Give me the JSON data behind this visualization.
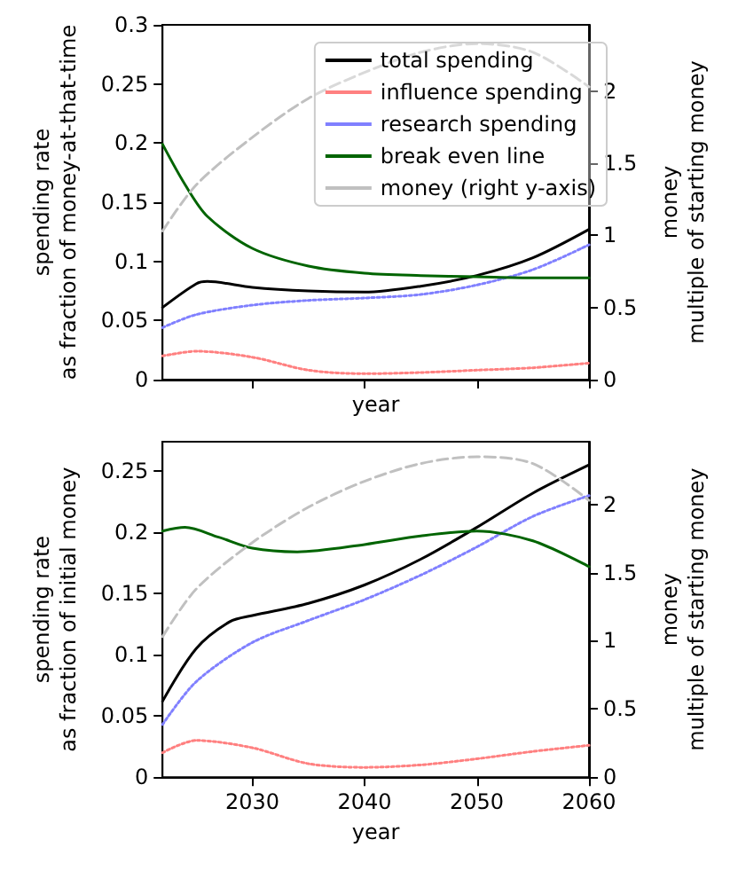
{
  "chart_data": [
    {
      "type": "line",
      "xlabel": "year",
      "ylabel": "spending rate\nas fraction of money-at-that-time",
      "y2label": "money\nmultiple of starting money",
      "xlim": [
        2022,
        2060
      ],
      "xticks": [
        {
          "value": 2030,
          "label": null
        },
        {
          "value": 2040,
          "label": null
        },
        {
          "value": 2050,
          "label": null
        },
        {
          "value": 2060,
          "label": null
        }
      ],
      "ylim": [
        0,
        0.3
      ],
      "yticks": [
        0,
        0.05,
        0.1,
        0.15,
        0.2,
        0.25,
        0.3
      ],
      "y2lim": [
        0,
        2.46
      ],
      "y2ticks": [
        0,
        0.5,
        1.0,
        1.5,
        2.0
      ],
      "tick_labels": "y",
      "grid": false,
      "legend": "top right",
      "marker": "none",
      "series": [
        {
          "name": "total spending",
          "color": "#000000",
          "line_style": "solid",
          "x": [
            2022,
            2025,
            2026,
            2030,
            2035,
            2040,
            2045,
            2050,
            2055,
            2060
          ],
          "values": [
            0.061,
            0.081,
            0.083,
            0.078,
            0.075,
            0.074,
            0.079,
            0.088,
            0.103,
            0.127
          ]
        },
        {
          "name": "influence spending",
          "color": "#ff8080",
          "line_style": "dotted",
          "x": [
            2022,
            2025,
            2030,
            2035,
            2040,
            2045,
            2050,
            2055,
            2060
          ],
          "values": [
            0.02,
            0.024,
            0.019,
            0.008,
            0.005,
            0.006,
            0.008,
            0.01,
            0.014
          ]
        },
        {
          "name": "research spending",
          "color": "#8080ff",
          "line_style": "dotted",
          "x": [
            2022,
            2025,
            2030,
            2035,
            2040,
            2045,
            2050,
            2055,
            2060
          ],
          "values": [
            0.044,
            0.055,
            0.063,
            0.067,
            0.069,
            0.072,
            0.08,
            0.093,
            0.114
          ]
        },
        {
          "name": "break even line",
          "color": "#006400",
          "line_style": "solid",
          "x": [
            2022,
            2024,
            2026,
            2030,
            2035,
            2040,
            2045,
            2050,
            2055,
            2060
          ],
          "values": [
            0.199,
            0.165,
            0.138,
            0.111,
            0.096,
            0.09,
            0.088,
            0.087,
            0.086,
            0.086
          ]
        },
        {
          "name": "money (right y-axis)",
          "color": "#c0c0c0",
          "line_style": "dashed",
          "axis": "y2",
          "x": [
            2022,
            2025,
            2030,
            2035,
            2040,
            2045,
            2050,
            2055,
            2060
          ],
          "values": [
            1.03,
            1.35,
            1.68,
            1.95,
            2.13,
            2.27,
            2.33,
            2.27,
            2.03
          ]
        }
      ]
    },
    {
      "type": "line",
      "xlabel": "year",
      "ylabel": "spending rate\nas fraction of initial money",
      "y2label": "money\nmultiple of starting money",
      "xlim": [
        2022,
        2060
      ],
      "xticks": [
        2030,
        2040,
        2050,
        2060
      ],
      "ylim": [
        0,
        0.274
      ],
      "yticks": [
        0,
        0.05,
        0.1,
        0.15,
        0.2,
        0.25
      ],
      "y2lim": [
        0,
        2.46
      ],
      "y2ticks": [
        0,
        0.5,
        1.0,
        1.5,
        2.0
      ],
      "grid": false,
      "legend": false,
      "marker": "none",
      "series": [
        {
          "color": "#000000",
          "line_style": "solid",
          "x": [
            2022,
            2025,
            2028,
            2030,
            2035,
            2040,
            2045,
            2050,
            2055,
            2060
          ],
          "values": [
            0.062,
            0.105,
            0.127,
            0.132,
            0.142,
            0.157,
            0.178,
            0.204,
            0.232,
            0.255
          ]
        },
        {
          "color": "#ff8080",
          "line_style": "dotted",
          "x": [
            2022,
            2025,
            2030,
            2035,
            2040,
            2045,
            2050,
            2055,
            2060
          ],
          "values": [
            0.02,
            0.03,
            0.024,
            0.011,
            0.008,
            0.01,
            0.015,
            0.021,
            0.026
          ]
        },
        {
          "color": "#8080ff",
          "line_style": "dotted",
          "x": [
            2022,
            2025,
            2030,
            2035,
            2040,
            2045,
            2050,
            2055,
            2060
          ],
          "values": [
            0.043,
            0.078,
            0.11,
            0.128,
            0.145,
            0.165,
            0.188,
            0.213,
            0.23
          ]
        },
        {
          "color": "#006400",
          "line_style": "solid",
          "x": [
            2022,
            2024,
            2027,
            2030,
            2034,
            2040,
            2045,
            2050,
            2055,
            2060
          ],
          "values": [
            0.201,
            0.204,
            0.196,
            0.187,
            0.184,
            0.19,
            0.197,
            0.201,
            0.193,
            0.172
          ]
        },
        {
          "color": "#c0c0c0",
          "line_style": "dashed",
          "axis": "y2",
          "x": [
            2022,
            2025,
            2030,
            2035,
            2040,
            2045,
            2050,
            2055,
            2060
          ],
          "values": [
            1.03,
            1.38,
            1.72,
            1.98,
            2.17,
            2.3,
            2.35,
            2.3,
            2.03
          ]
        }
      ]
    }
  ]
}
